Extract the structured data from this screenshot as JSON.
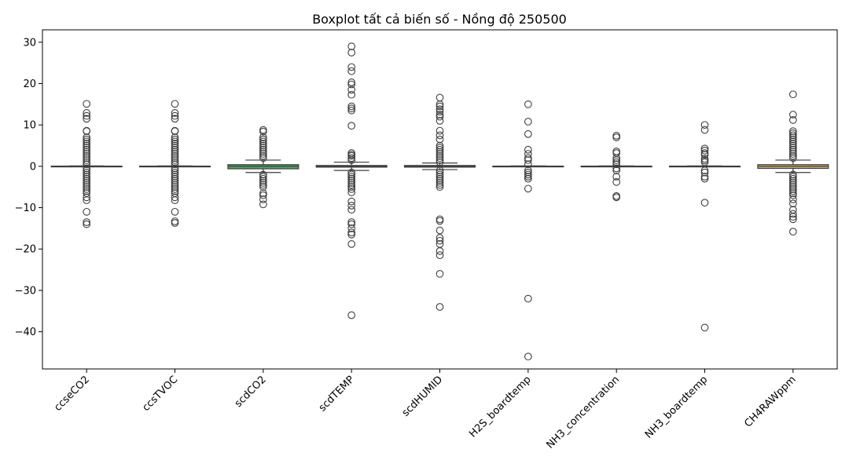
{
  "chart_data": {
    "type": "boxplot",
    "title": "Boxplot tất cả biến số - Nồng độ 250500",
    "xlabel": "",
    "ylabel": "",
    "ylim": [
      -49,
      33
    ],
    "yticks": [
      30,
      20,
      10,
      0,
      -10,
      -20,
      -30,
      -40
    ],
    "grid": false,
    "legend": "none",
    "categories": [
      "ccseCO2",
      "ccsTVOC",
      "scdCO2",
      "scdTEMP",
      "scdHUMID",
      "H2S_boardtemp",
      "NH3_concentration",
      "NH3_boardtemp",
      "CH4RAWppm"
    ],
    "series": [
      {
        "category": "ccseCO2",
        "color": "#3b6ea8",
        "q1": -0.05,
        "median": 0,
        "q3": 0.05,
        "whisker_low": -0.1,
        "whisker_high": 0.1,
        "outliers": [
          15.1,
          12.9,
          12.2,
          11.5,
          8.6,
          8.5,
          7.0,
          6.5,
          6.0,
          5.5,
          5.0,
          4.5,
          4.0,
          3.5,
          3.0,
          2.5,
          2.0,
          1.5,
          1.0,
          0.5,
          -0.5,
          -1.0,
          -1.5,
          -2.0,
          -2.5,
          -3.0,
          -3.5,
          -4.0,
          -4.5,
          -5.0,
          -5.5,
          -6.0,
          -6.5,
          -7.5,
          -8.2,
          -11.0,
          -13.5,
          -14.0
        ]
      },
      {
        "category": "ccsTVOC",
        "color": "#dd8452",
        "q1": -0.05,
        "median": 0,
        "q3": 0.05,
        "whisker_low": -0.1,
        "whisker_high": 0.1,
        "outliers": [
          15.1,
          12.9,
          12.2,
          11.5,
          8.6,
          8.5,
          7.0,
          6.5,
          6.0,
          5.5,
          5.0,
          4.5,
          4.0,
          3.5,
          3.0,
          2.5,
          2.0,
          1.5,
          1.0,
          0.5,
          -0.5,
          -1.0,
          -1.5,
          -2.0,
          -2.5,
          -3.0,
          -3.5,
          -4.0,
          -4.5,
          -5.0,
          -5.5,
          -6.0,
          -6.5,
          -7.5,
          -8.2,
          -11.0,
          -13.3,
          -13.7
        ]
      },
      {
        "category": "scdCO2",
        "color": "#55a868",
        "q1": -0.6,
        "median": 0,
        "q3": 0.4,
        "whisker_low": -1.5,
        "whisker_high": 1.5,
        "outliers": [
          8.8,
          8.4,
          7.0,
          6.5,
          6.0,
          5.5,
          5.0,
          4.5,
          4.0,
          3.5,
          3.0,
          2.5,
          2.0,
          -2.0,
          -2.5,
          -3.0,
          -3.5,
          -4.0,
          -4.5,
          -5.0,
          -6.5,
          -7.0,
          -8.0,
          -9.2
        ]
      },
      {
        "category": "scdTEMP",
        "color": "#c44e52",
        "q1": -0.2,
        "median": 0,
        "q3": 0.2,
        "whisker_low": -1.0,
        "whisker_high": 1.0,
        "outliers": [
          29.0,
          27.5,
          24.0,
          23.0,
          20.3,
          19.8,
          18.5,
          17.3,
          14.5,
          14.0,
          13.5,
          9.8,
          3.2,
          2.8,
          2.5,
          2.0,
          1.5,
          -1.5,
          -2.0,
          -2.5,
          -3.0,
          -3.5,
          -4.0,
          -4.5,
          -5.0,
          -5.5,
          -6.3,
          -8.5,
          -9.5,
          -10.5,
          -13.5,
          -14.0,
          -15.0,
          -16.0,
          -16.5,
          -18.8,
          -36.0
        ]
      },
      {
        "category": "scdHUMID",
        "color": "#8172b3",
        "q1": -0.2,
        "median": 0,
        "q3": 0.2,
        "whisker_low": -0.8,
        "whisker_high": 0.8,
        "outliers": [
          16.6,
          15.0,
          14.5,
          13.8,
          13.2,
          12.5,
          12.0,
          11.0,
          8.6,
          7.5,
          6.5,
          5.0,
          4.5,
          4.0,
          3.5,
          3.0,
          2.5,
          2.0,
          1.5,
          1.0,
          -1.0,
          -1.5,
          -2.0,
          -2.5,
          -3.0,
          -3.5,
          -4.0,
          -4.5,
          -5.0,
          -12.8,
          -13.2,
          -15.5,
          -17.3,
          -18.0,
          -18.8,
          -20.5,
          -21.5,
          -26.0,
          -34.0
        ]
      },
      {
        "category": "H2S_boardtemp",
        "color": "#937860",
        "q1": -0.05,
        "median": 0,
        "q3": 0.05,
        "whisker_low": -0.1,
        "whisker_high": 0.1,
        "outliers": [
          15.0,
          10.8,
          7.8,
          4.0,
          3.0,
          2.0,
          1.5,
          0.5,
          -1.0,
          -1.5,
          -2.0,
          -2.5,
          -3.0,
          -5.4,
          -32.0,
          -46.0
        ]
      },
      {
        "category": "NH3_concentration",
        "color": "#da8bc3",
        "q1": -0.05,
        "median": 0,
        "q3": 0.05,
        "whisker_low": -0.1,
        "whisker_high": 0.1,
        "outliers": [
          7.4,
          7.0,
          3.6,
          3.2,
          2.0,
          1.5,
          1.0,
          0.5,
          -0.5,
          -1.0,
          -2.5,
          -3.8,
          -7.2,
          -7.5
        ]
      },
      {
        "category": "NH3_boardtemp",
        "color": "#8c8c8c",
        "q1": -0.05,
        "median": 0,
        "q3": 0.05,
        "whisker_low": -0.1,
        "whisker_high": 0.1,
        "outliers": [
          10.0,
          8.8,
          4.3,
          3.8,
          3.2,
          2.8,
          1.8,
          1.4,
          1.0,
          -1.0,
          -1.5,
          -2.5,
          -3.0,
          -8.8,
          -39.0
        ]
      },
      {
        "category": "CH4RAWppm",
        "color": "#ccb974",
        "q1": -0.5,
        "median": 0,
        "q3": 0.4,
        "whisker_low": -1.5,
        "whisker_high": 1.5,
        "outliers": [
          17.4,
          12.5,
          11.2,
          8.5,
          8.0,
          7.5,
          7.0,
          6.5,
          6.0,
          5.5,
          5.0,
          4.5,
          4.0,
          3.5,
          3.0,
          2.5,
          2.0,
          -2.0,
          -2.5,
          -3.0,
          -3.5,
          -4.0,
          -4.5,
          -5.0,
          -5.5,
          -6.0,
          -6.5,
          -7.0,
          -8.0,
          -9.0,
          -10.5,
          -11.5,
          -12.2,
          -12.8,
          -15.8
        ]
      }
    ]
  }
}
